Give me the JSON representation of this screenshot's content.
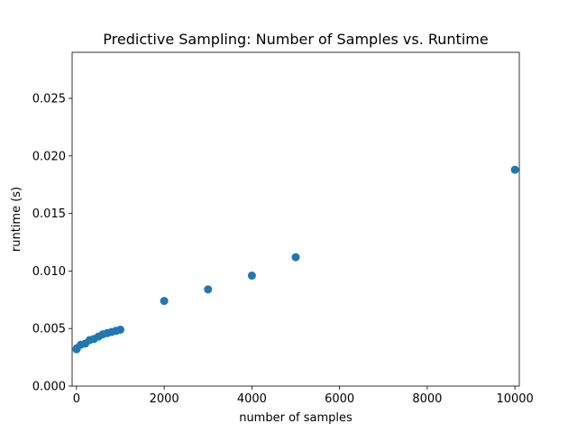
{
  "chart_data": {
    "type": "scatter",
    "title": "Predictive Sampling: Number of Samples vs. Runtime",
    "xlabel": "number of samples",
    "ylabel": "runtime (s)",
    "xlim": [
      -100,
      10100
    ],
    "ylim": [
      0,
      0.029
    ],
    "xticks": [
      0,
      2000,
      4000,
      6000,
      8000,
      10000
    ],
    "xtick_labels": [
      "0",
      "2000",
      "4000",
      "6000",
      "8000",
      "10000"
    ],
    "yticks": [
      0.0,
      0.005,
      0.01,
      0.015,
      0.02,
      0.025
    ],
    "ytick_labels": [
      "0.000",
      "0.005",
      "0.010",
      "0.015",
      "0.020",
      "0.025"
    ],
    "grid": false,
    "legend": "none",
    "series": [
      {
        "color": "#1f77b4",
        "x": [
          1,
          10,
          100,
          200,
          300,
          400,
          500,
          600,
          700,
          800,
          900,
          1000,
          2000,
          3000,
          4000,
          5000,
          10000
        ],
        "y": [
          0.0032,
          0.0033,
          0.0036,
          0.0037,
          0.004,
          0.0041,
          0.0043,
          0.0045,
          0.0046,
          0.0047,
          0.0048,
          0.0049,
          0.0074,
          0.0084,
          0.0096,
          0.0112,
          0.0188
        ]
      }
    ]
  }
}
